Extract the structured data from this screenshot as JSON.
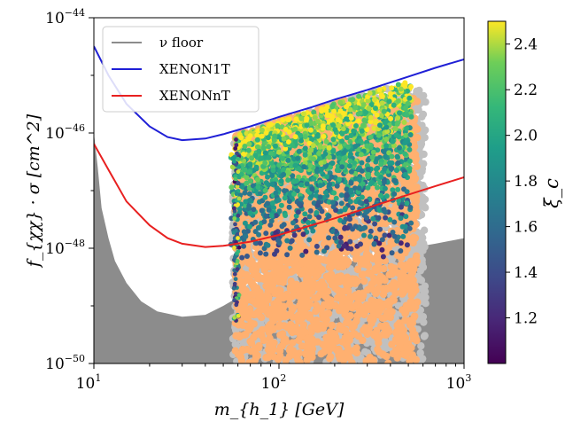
{
  "chart_data": {
    "type": "scatter",
    "xlabel": "m_{h_1} [GeV]",
    "ylabel": "f_{χχ} · σ [cm^2]",
    "xscale": "log",
    "yscale": "log",
    "xlim": [
      10,
      1000
    ],
    "ylim": [
      1e-50,
      1e-44
    ],
    "x_ticks": [
      {
        "base": "10",
        "exp": "1",
        "value": 10
      },
      {
        "base": "10",
        "exp": "2",
        "value": 100
      },
      {
        "base": "10",
        "exp": "3",
        "value": 1000
      }
    ],
    "y_ticks": [
      {
        "base": "10",
        "exp": "−50",
        "value": 1e-50
      },
      {
        "base": "10",
        "exp": "−48",
        "value": 1e-48
      },
      {
        "base": "10",
        "exp": "−46",
        "value": 1e-46
      },
      {
        "base": "10",
        "exp": "−44",
        "value": 1e-44
      }
    ],
    "legend": {
      "placement": "top-left",
      "entries": [
        {
          "label": "ν floor",
          "color": "#8c8c8c"
        },
        {
          "label": "XENON1T",
          "color": "#1f1fd6"
        },
        {
          "label": "XENONnT",
          "color": "#e82020"
        }
      ]
    },
    "neutrino_floor": [
      [
        10,
        1e-46
      ],
      [
        10.5,
        2.5e-47
      ],
      [
        11,
        5e-48
      ],
      [
        12,
        1.5e-48
      ],
      [
        13,
        6e-49
      ],
      [
        15,
        2.5e-49
      ],
      [
        18,
        1.2e-49
      ],
      [
        22,
        8e-50
      ],
      [
        30,
        6.5e-50
      ],
      [
        40,
        7e-50
      ],
      [
        50,
        1e-49
      ],
      [
        60,
        1.4e-49
      ],
      [
        80,
        2e-49
      ],
      [
        100,
        2.7e-49
      ],
      [
        150,
        4e-49
      ],
      [
        200,
        5e-49
      ],
      [
        300,
        7e-49
      ],
      [
        500,
        1e-48
      ],
      [
        700,
        1.2e-48
      ],
      [
        1000,
        1.5e-48
      ]
    ],
    "series": [
      {
        "name": "XENON1T",
        "color": "#1f1fd6",
        "points": [
          [
            10,
            3.2e-45
          ],
          [
            12,
            1e-45
          ],
          [
            15,
            3.2e-46
          ],
          [
            20,
            1.3e-46
          ],
          [
            25,
            8.5e-47
          ],
          [
            30,
            7.5e-47
          ],
          [
            40,
            8e-47
          ],
          [
            50,
            9.5e-47
          ],
          [
            70,
            1.3e-46
          ],
          [
            100,
            1.9e-46
          ],
          [
            150,
            2.8e-46
          ],
          [
            200,
            3.8e-46
          ],
          [
            300,
            5.6e-46
          ],
          [
            500,
            9.5e-46
          ],
          [
            700,
            1.35e-45
          ],
          [
            1000,
            1.9e-45
          ]
        ]
      },
      {
        "name": "XENONnT",
        "color": "#e82020",
        "points": [
          [
            10,
            6.5e-47
          ],
          [
            12,
            2.3e-47
          ],
          [
            15,
            6.5e-48
          ],
          [
            20,
            2.5e-48
          ],
          [
            25,
            1.5e-48
          ],
          [
            30,
            1.2e-48
          ],
          [
            40,
            1.05e-48
          ],
          [
            50,
            1.1e-48
          ],
          [
            70,
            1.3e-48
          ],
          [
            100,
            1.7e-48
          ],
          [
            150,
            2.5e-48
          ],
          [
            200,
            3.3e-48
          ],
          [
            300,
            5e-48
          ],
          [
            500,
            8.5e-48
          ],
          [
            700,
            1.2e-47
          ],
          [
            1000,
            1.7e-47
          ]
        ]
      }
    ],
    "scan_regions": [
      {
        "kind": "excluded",
        "color": "#c0c0c0",
        "x_range": [
          56,
          620
        ],
        "y_range": [
          1e-50,
          6e-46
        ]
      },
      {
        "kind": "allowed",
        "color": "#ffb070",
        "x_range": [
          58,
          560
        ],
        "y_range": [
          1e-50,
          4e-46
        ]
      }
    ],
    "colored_points_region": {
      "x_range": [
        55,
        520
      ],
      "y_range": [
        1e-49,
        5e-46
      ]
    },
    "colorbar": {
      "label": "ξ_c",
      "range": [
        1.0,
        2.5
      ],
      "ticks": [
        "1.2",
        "1.4",
        "1.6",
        "1.8",
        "2.0",
        "2.2",
        "2.4"
      ],
      "tick_values": [
        1.2,
        1.4,
        1.6,
        1.8,
        2.0,
        2.2,
        2.4
      ],
      "colormap": "viridis"
    }
  }
}
